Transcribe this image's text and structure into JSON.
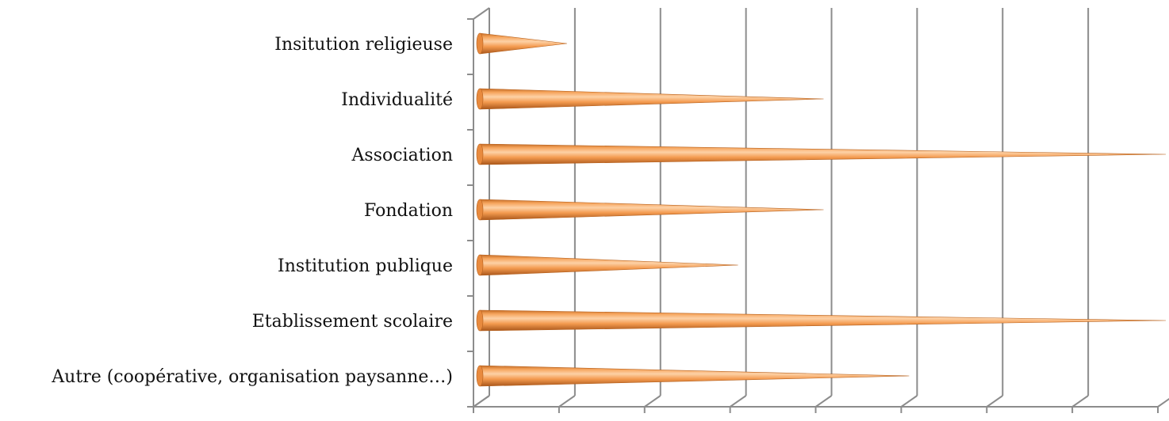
{
  "chart_data": {
    "type": "bar",
    "orientation": "horizontal",
    "style": "3d-cone",
    "categories": [
      "Insitution religieuse",
      "Individualité",
      "Association",
      "Fondation",
      "Institution publique",
      "Etablissement scolaire",
      "Autre (coopérative, organisation paysanne…)"
    ],
    "values": [
      1,
      4,
      8,
      4,
      3,
      8,
      5
    ],
    "xlim": [
      0,
      8
    ],
    "x_ticks": [
      "0",
      "1",
      "2",
      "3",
      "4",
      "5",
      "6",
      "7",
      "8"
    ],
    "grid": true,
    "legend": "none",
    "colors": {
      "bar_light": "#fbc08a",
      "bar_mid": "#f39a4f",
      "bar_dark": "#b8621f",
      "grid": "#8c8c8c"
    }
  }
}
